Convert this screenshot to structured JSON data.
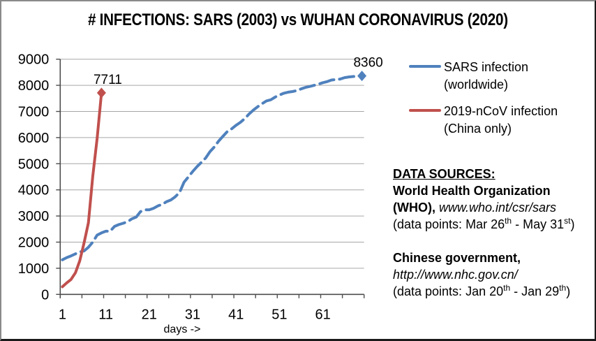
{
  "chart_data": {
    "type": "line",
    "title": "# INFECTIONS: SARS (2003) vs WUHAN CORONAVIRUS (2020)",
    "xlabel": "days ->",
    "ylabel": "",
    "xlim": [
      0.5,
      70.5
    ],
    "ylim": [
      0,
      9000
    ],
    "grid": true,
    "x_tick_labels": [
      1,
      11,
      21,
      31,
      41,
      51,
      61
    ],
    "x_minor_tick_step": 5,
    "y_ticks": [
      0,
      1000,
      2000,
      3000,
      4000,
      5000,
      6000,
      7000,
      8000,
      9000
    ],
    "legend_position": "right",
    "axis_color": "#4d4d4d",
    "grid_color": "#a6a6a6",
    "series": [
      {
        "name": "SARS infection (worldwide)",
        "color": "#4F81BD",
        "style": "dashed",
        "end_label": "8360",
        "x_start": 1,
        "values": [
          1323,
          1408,
          1473,
          1550,
          1622,
          1662,
          1804,
          2000,
          2270,
          2353,
          2416,
          2416,
          2601,
          2671,
          2722,
          2781,
          2890,
          2960,
          3169,
          3235,
          3235,
          3293,
          3389,
          3447,
          3547,
          3614,
          3736,
          3904,
          4288,
          4493,
          4698,
          4884,
          5050,
          5220,
          5462,
          5642,
          5865,
          6054,
          6234,
          6336,
          6470,
          6583,
          6727,
          6903,
          7053,
          7183,
          7296,
          7404,
          7447,
          7548,
          7628,
          7699,
          7739,
          7761,
          7796,
          7864,
          7919,
          7956,
          8000,
          8046,
          8102,
          8142,
          8202,
          8221,
          8240,
          8295,
          8320,
          8338,
          8350,
          8360
        ]
      },
      {
        "name": "2019-nCoV infection (China only)",
        "color": "#C0504D",
        "style": "solid",
        "end_label": "7711",
        "x_start": 1,
        "values": [
          291,
          440,
          571,
          830,
          1287,
          1975,
          2744,
          4515,
          5974,
          7711
        ]
      }
    ]
  },
  "legend": {
    "items": [
      {
        "line1": "SARS infection",
        "line2": "(worldwide)"
      },
      {
        "line1": "2019-nCoV infection",
        "line2": "(China only)"
      }
    ]
  },
  "sources": {
    "heading": "DATA SOURCES:",
    "who_name": "World Health Organization",
    "who_label": "(WHO),",
    "who_url": "www.who.int/csr/sars",
    "who_range_pre": "(data points: Mar 26",
    "who_sup1": "th",
    "who_range_mid": " - May 31",
    "who_sup2": "st",
    "who_range_post": ")",
    "cn_name": "Chinese government,",
    "cn_url": "http://www.nhc.gov.cn/",
    "cn_range_pre": "(data points: Jan 20",
    "cn_sup1": "th",
    "cn_range_mid": " - Jan 29",
    "cn_sup2": "th",
    "cn_range_post": ")"
  }
}
